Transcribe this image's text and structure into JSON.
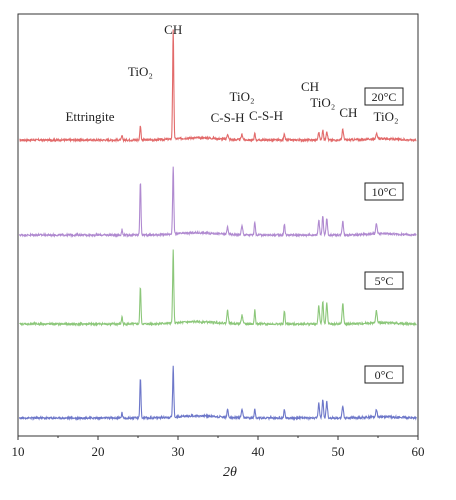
{
  "chart_data": {
    "type": "line",
    "title": "",
    "xlabel": "2θ",
    "ylabel": "",
    "xlim": [
      10,
      60
    ],
    "x_ticks": [
      10,
      20,
      30,
      40,
      50,
      60
    ],
    "grid": false,
    "peaks_2theta": [
      {
        "name": "Ettringite",
        "x": 23.0
      },
      {
        "name": "TiO2",
        "x": 25.3
      },
      {
        "name": "CH",
        "x": 29.4
      },
      {
        "name": "C-S-H",
        "x": 36.2
      },
      {
        "name": "TiO2",
        "x": 38.0
      },
      {
        "name": "C-S-H",
        "x": 39.6
      },
      {
        "name": "CH",
        "x": 43.3
      },
      {
        "name": "TiO2",
        "x": 48.1
      },
      {
        "name": "CH",
        "x": 50.6
      },
      {
        "name": "TiO2",
        "x": 54.8
      }
    ],
    "series": [
      {
        "name": "20°C",
        "color": "#e26a6a",
        "peak_intensities": [
          0.04,
          0.13,
          1.0,
          0.05,
          0.05,
          0.06,
          0.05,
          0.09,
          0.1,
          0.05
        ]
      },
      {
        "name": "10°C",
        "color": "#b08ad0",
        "peak_intensities": [
          0.05,
          0.48,
          0.62,
          0.07,
          0.08,
          0.12,
          0.1,
          0.17,
          0.13,
          0.09
        ]
      },
      {
        "name": "5°C",
        "color": "#8cc77a",
        "peak_intensities": [
          0.07,
          0.33,
          0.66,
          0.13,
          0.08,
          0.13,
          0.12,
          0.21,
          0.19,
          0.11
        ]
      },
      {
        "name": "0°C",
        "color": "#6d77c9",
        "peak_intensities": [
          0.05,
          0.36,
          0.46,
          0.07,
          0.07,
          0.09,
          0.08,
          0.17,
          0.11,
          0.07
        ]
      }
    ],
    "annotations": [
      {
        "text": "CH",
        "x": 29.4
      },
      {
        "text": "TiO₂",
        "x": 25.3
      },
      {
        "text": "TiO₂",
        "x": 38.0
      },
      {
        "text": "C-S-H",
        "x": 36.2
      },
      {
        "text": "C-S-H",
        "x": 41.0
      },
      {
        "text": "Ettringite",
        "x": 19.0
      },
      {
        "text": "TiO₂",
        "x": 48.1
      },
      {
        "text": "CH",
        "x": 46.5
      },
      {
        "text": "CH",
        "x": 51.3
      },
      {
        "text": "TiO₂",
        "x": 56.0
      }
    ]
  }
}
